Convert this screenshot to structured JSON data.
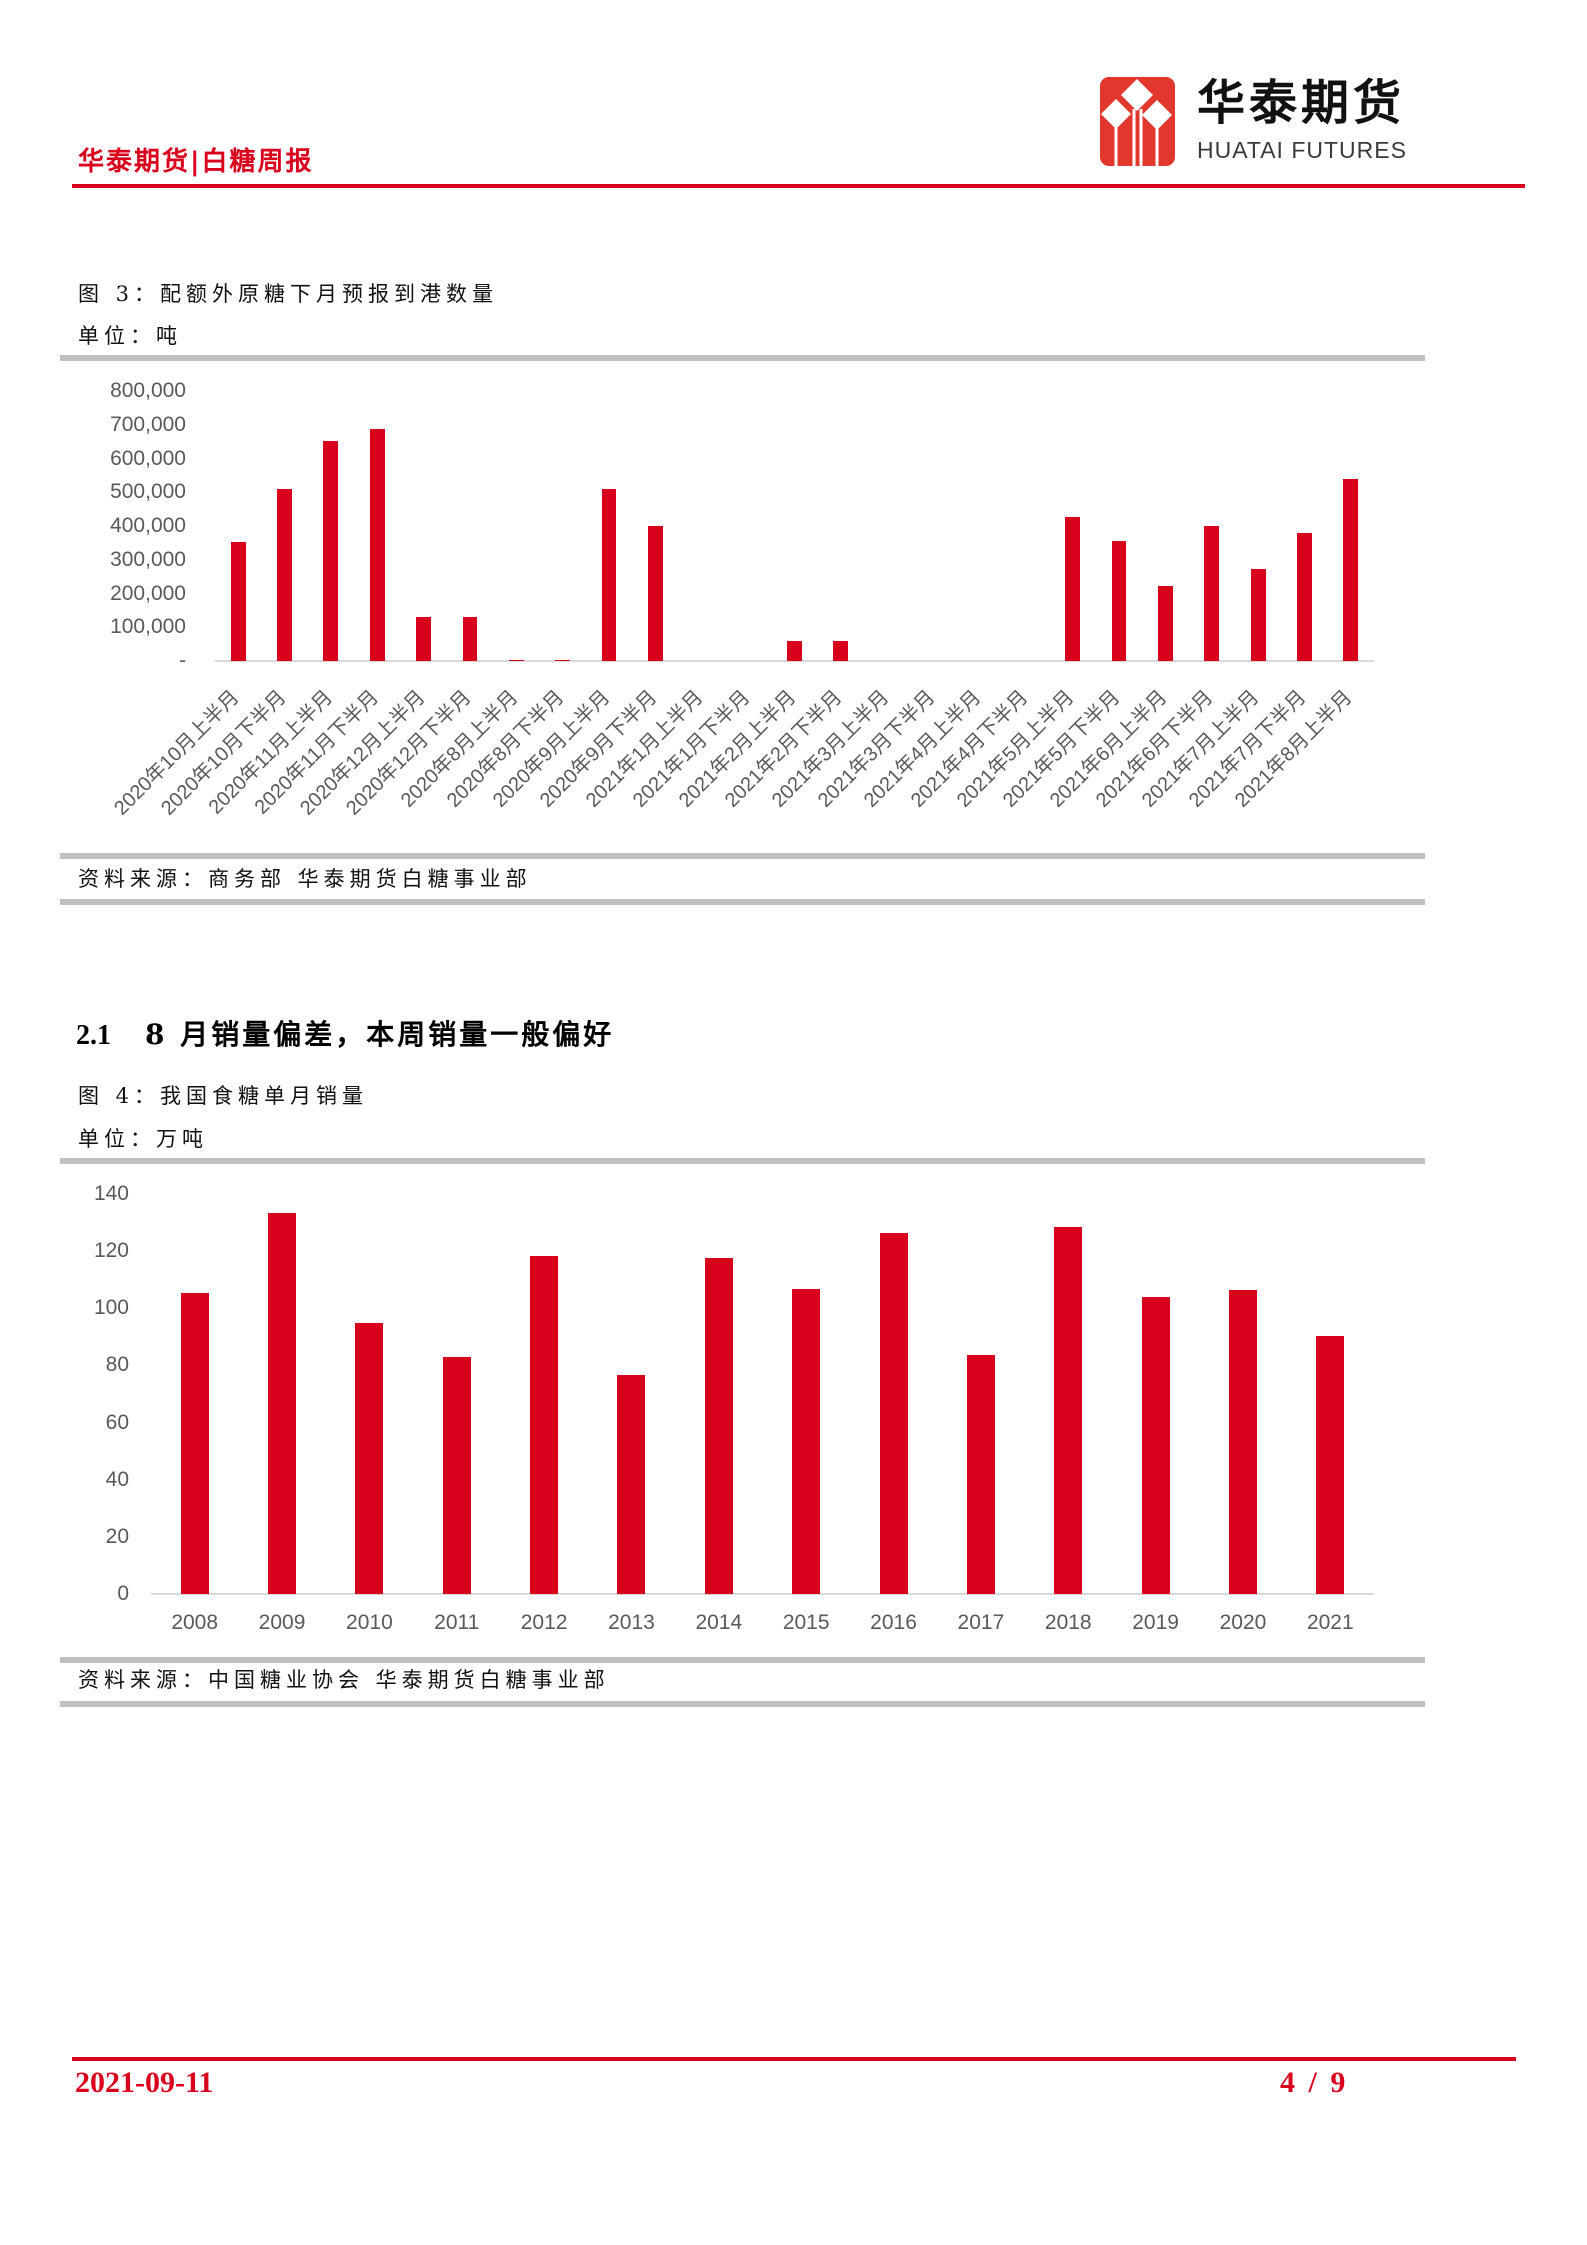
{
  "header": {
    "title": "华泰期货|白糖周报",
    "logo": {
      "icon": "huatai-logo-icon",
      "cn": "华泰期货",
      "en": "HUATAI FUTURES"
    }
  },
  "figure3": {
    "caption": "图 3：配额外原糖下月预报到港数量",
    "unit": "单位：吨",
    "source": "资料来源：商务部 华泰期货白糖事业部"
  },
  "section": {
    "number": "2.1",
    "title": "8 月销量偏差，本周销量一般偏好"
  },
  "figure4": {
    "caption": "图 4：我国食糖单月销量",
    "unit": "单位：万吨",
    "source": "资料来源：中国糖业协会 华泰期货白糖事业部"
  },
  "footer": {
    "date": "2021-09-11",
    "page": "4 / 9"
  },
  "colors": {
    "accent": "#D9001B",
    "bar": "#D9001B",
    "rule_gray": "#C0C0C0",
    "axis_text": "#595959",
    "logo_red": "#E2372C"
  },
  "chart_data": [
    {
      "type": "bar",
      "title": "图 3：配额外原糖下月预报到港数量",
      "xlabel": "",
      "ylabel": "吨",
      "color": "#D9001B",
      "grid": false,
      "legend": null,
      "categories": [
        "2020年10月上半月",
        "2020年10月下半月",
        "2020年11月上半月",
        "2020年11月下半月",
        "2020年12月上半月",
        "2020年12月下半月",
        "2020年8月上半月",
        "2020年8月下半月",
        "2020年9月上半月",
        "2020年9月下半月",
        "2021年1月上半月",
        "2021年1月下半月",
        "2021年2月上半月",
        "2021年2月下半月",
        "2021年3月上半月",
        "2021年3月下半月",
        "2021年4月上半月",
        "2021年4月下半月",
        "2021年5月上半月",
        "2021年5月下半月",
        "2021年6月上半月",
        "2021年6月下半月",
        "2021年7月上半月",
        "2021年7月下半月",
        "2021年8月上半月"
      ],
      "values": [
        353000,
        509000,
        651000,
        686000,
        129000,
        129000,
        3000,
        3000,
        509000,
        400000,
        0,
        0,
        59000,
        59000,
        0,
        0,
        0,
        0,
        428000,
        355000,
        222000,
        399000,
        273000,
        380000,
        540000
      ],
      "ylim": [
        0,
        800000
      ],
      "yticks": [
        0,
        100000,
        200000,
        300000,
        400000,
        500000,
        600000,
        700000,
        800000
      ],
      "ytick_labels": [
        "-",
        "100,000",
        "200,000",
        "300,000",
        "400,000",
        "500,000",
        "600,000",
        "700,000",
        "800,000"
      ],
      "source": "资料来源：商务部 华泰期货白糖事业部"
    },
    {
      "type": "bar",
      "title": "图 4：我国食糖单月销量",
      "xlabel": "",
      "ylabel": "万吨",
      "color": "#D9001B",
      "grid": false,
      "legend": null,
      "categories": [
        "2008",
        "2009",
        "2010",
        "2011",
        "2012",
        "2013",
        "2014",
        "2015",
        "2016",
        "2017",
        "2018",
        "2019",
        "2020",
        "2021"
      ],
      "values": [
        105.5,
        133.3,
        95.0,
        83.0,
        118.2,
        76.7,
        117.7,
        106.6,
        126.5,
        83.5,
        128.5,
        103.8,
        106.5,
        90.4
      ],
      "ylim": [
        0,
        140
      ],
      "yticks": [
        0,
        20,
        40,
        60,
        80,
        100,
        120,
        140
      ],
      "ytick_labels": [
        "0",
        "20",
        "40",
        "60",
        "80",
        "100",
        "120",
        "140"
      ],
      "source": "资料来源：中国糖业协会 华泰期货白糖事业部"
    }
  ]
}
